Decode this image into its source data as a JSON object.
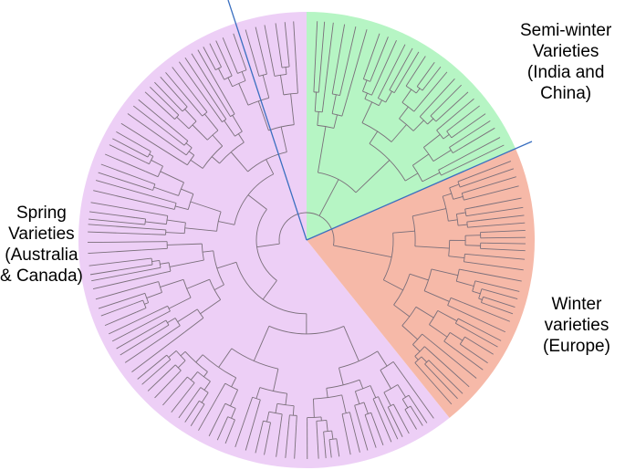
{
  "figure": {
    "type": "circular-dendrogram",
    "clusters": [
      {
        "name": "semi-winter",
        "label_lines": [
          "Semi-winter",
          "Varieties",
          "(India and",
          "China)"
        ],
        "color": "#b6f5c4"
      },
      {
        "name": "winter",
        "label_lines": [
          "Winter",
          "varieties",
          "(Europe)"
        ],
        "color": "#f6b9a8"
      },
      {
        "name": "spring",
        "label_lines": [
          "Spring",
          "Varieties",
          "(Australia",
          "& Canada)"
        ],
        "color": "#edcff6"
      }
    ],
    "divider_color": "#3a6fc0",
    "branch_color": "#7a6f7a"
  }
}
